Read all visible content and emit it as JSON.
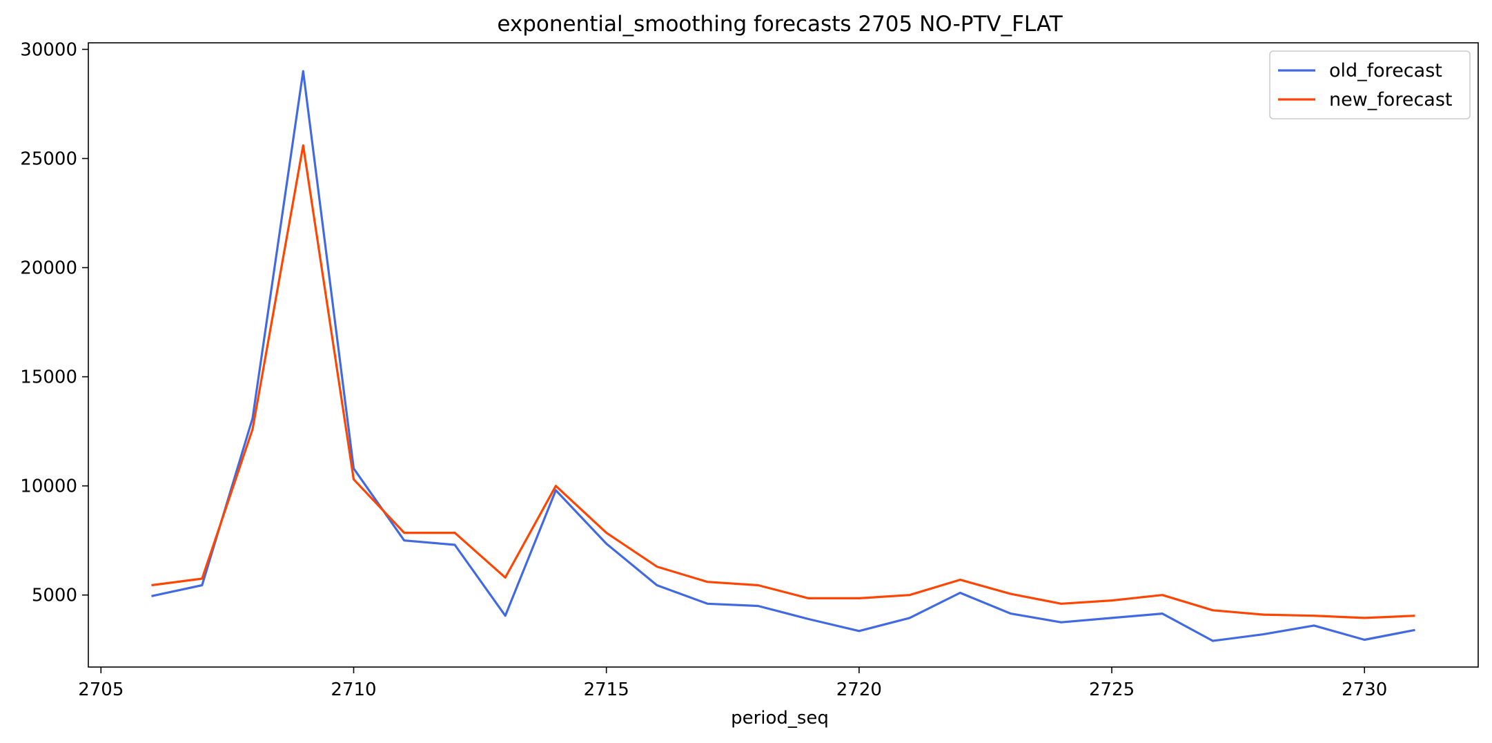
{
  "chart_data": {
    "type": "line",
    "title": "exponential_smoothing forecasts 2705 NO-PTV_FLAT",
    "xlabel": "period_seq",
    "ylabel": "",
    "x": [
      2706,
      2707,
      2708,
      2709,
      2710,
      2711,
      2712,
      2713,
      2714,
      2715,
      2716,
      2717,
      2718,
      2719,
      2720,
      2721,
      2722,
      2723,
      2724,
      2725,
      2726,
      2727,
      2728,
      2729,
      2730,
      2731
    ],
    "series": [
      {
        "name": "old_forecast",
        "color": "#4169e1",
        "values": [
          4950,
          5450,
          13100,
          29000,
          10800,
          7500,
          7300,
          4050,
          9800,
          7350,
          5450,
          4600,
          4500,
          3900,
          3350,
          3950,
          5100,
          4150,
          3750,
          3950,
          4150,
          2900,
          3200,
          3600,
          2950,
          3400
        ]
      },
      {
        "name": "new_forecast",
        "color": "#ff4500",
        "values": [
          5450,
          5750,
          12600,
          25600,
          10300,
          7850,
          7850,
          5800,
          10000,
          7850,
          6300,
          5600,
          5450,
          4850,
          4850,
          5000,
          5700,
          5050,
          4600,
          4750,
          5000,
          4300,
          4100,
          4050,
          3950,
          4050
        ]
      }
    ],
    "xlim": [
      2704.75,
      2732.25
    ],
    "ylim": [
      1700,
      30300
    ],
    "xticks": [
      "2705",
      "2710",
      "2715",
      "2720",
      "2725",
      "2730"
    ],
    "yticks": [
      "5000",
      "10000",
      "15000",
      "20000",
      "25000",
      "30000"
    ],
    "grid": false,
    "legend": "top-right"
  }
}
